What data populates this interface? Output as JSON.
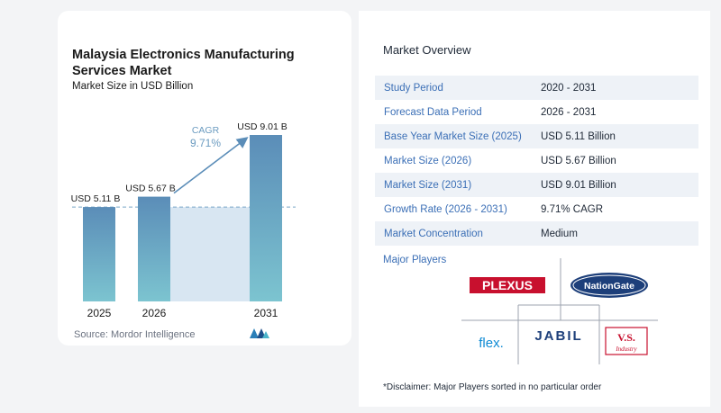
{
  "chart": {
    "title": "Malaysia Electronics Manufacturing Services Market",
    "subtitle": "Market Size in USD Billion",
    "source": "Source: Mordor Intelligence",
    "cagr_label": "CAGR",
    "cagr_value": "9.71%"
  },
  "chart_data": {
    "type": "bar",
    "title": "Malaysia Electronics Manufacturing Services Market",
    "subtitle": "Market Size in USD Billion",
    "categories": [
      "2025",
      "2026",
      "2031"
    ],
    "values": [
      5.11,
      5.67,
      9.01
    ],
    "data_labels": [
      "USD 5.11 B",
      "USD 5.67 B",
      "USD 9.01 B"
    ],
    "ylim": [
      0,
      9.4
    ],
    "annotation": "CAGR 9.71%",
    "grid": false,
    "colors": {
      "bar_top": "#5b8db8",
      "bar_bottom": "#7cc4d0",
      "projection": "#d8e6f2",
      "arrow": "#5b8db8"
    }
  },
  "overview": {
    "title": "Market Overview",
    "rows": [
      {
        "label": "Study Period",
        "value": "2020 - 2031"
      },
      {
        "label": "Forecast Data Period",
        "value": "2026 - 2031"
      },
      {
        "label": "Base Year Market Size (2025)",
        "value": "USD 5.11 Billion"
      },
      {
        "label": "Market Size (2026)",
        "value": "USD 5.67 Billion"
      },
      {
        "label": "Market Size (2031)",
        "value": "USD 9.01 Billion"
      },
      {
        "label": "Growth Rate (2026 - 2031)",
        "value": "9.71% CAGR"
      },
      {
        "label": "Market Concentration",
        "value": "Medium"
      }
    ]
  },
  "players": {
    "title": "Major Players",
    "logos": [
      "PLEXUS",
      "NationGate",
      "flex.",
      "JABIL",
      "V.S.",
      "Industry"
    ]
  },
  "disclaimer": "*Disclaimer: Major Players sorted in no particular order"
}
